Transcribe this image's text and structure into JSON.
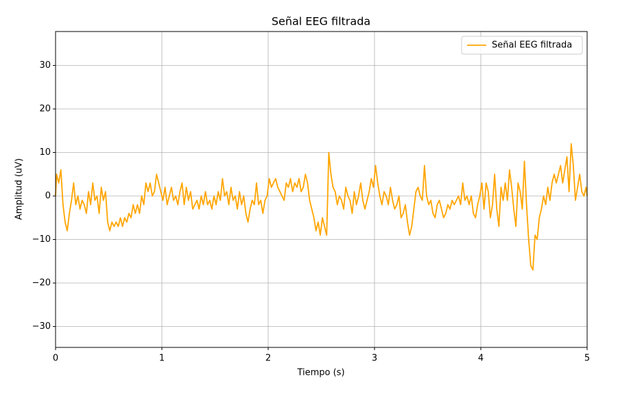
{
  "chart_data": {
    "type": "line",
    "title": "Señal EEG filtrada",
    "xlabel": "Tiempo (s)",
    "ylabel": "Amplitud (uV)",
    "x": [
      0,
      0.01,
      0.03,
      0.05,
      0.07,
      0.09,
      0.11,
      0.13,
      0.15,
      0.17,
      0.19,
      0.21,
      0.23,
      0.25,
      0.27,
      0.29,
      0.31,
      0.33,
      0.35,
      0.37,
      0.39,
      0.41,
      0.43,
      0.45,
      0.47,
      0.49,
      0.51,
      0.53,
      0.55,
      0.57,
      0.59,
      0.61,
      0.63,
      0.65,
      0.67,
      0.69,
      0.71,
      0.73,
      0.75,
      0.77,
      0.79,
      0.81,
      0.83,
      0.85,
      0.87,
      0.89,
      0.91,
      0.93,
      0.95,
      0.97,
      0.99,
      1.01,
      1.03,
      1.05,
      1.07,
      1.09,
      1.11,
      1.13,
      1.15,
      1.17,
      1.19,
      1.21,
      1.23,
      1.25,
      1.27,
      1.29,
      1.31,
      1.33,
      1.35,
      1.37,
      1.39,
      1.41,
      1.43,
      1.45,
      1.47,
      1.49,
      1.51,
      1.53,
      1.55,
      1.57,
      1.59,
      1.61,
      1.63,
      1.65,
      1.67,
      1.69,
      1.71,
      1.73,
      1.75,
      1.77,
      1.79,
      1.81,
      1.83,
      1.85,
      1.87,
      1.89,
      1.91,
      1.93,
      1.95,
      1.97,
      1.99,
      2.01,
      2.03,
      2.05,
      2.07,
      2.09,
      2.11,
      2.13,
      2.15,
      2.17,
      2.19,
      2.21,
      2.23,
      2.25,
      2.27,
      2.29,
      2.31,
      2.33,
      2.35,
      2.37,
      2.39,
      2.41,
      2.43,
      2.45,
      2.47,
      2.49,
      2.51,
      2.53,
      2.55,
      2.57,
      2.59,
      2.61,
      2.63,
      2.65,
      2.67,
      2.69,
      2.71,
      2.73,
      2.75,
      2.77,
      2.79,
      2.81,
      2.83,
      2.85,
      2.87,
      2.89,
      2.91,
      2.93,
      2.95,
      2.97,
      2.99,
      3.01,
      3.03,
      3.05,
      3.07,
      3.09,
      3.11,
      3.13,
      3.15,
      3.17,
      3.19,
      3.21,
      3.23,
      3.25,
      3.27,
      3.29,
      3.31,
      3.33,
      3.35,
      3.37,
      3.39,
      3.41,
      3.43,
      3.45,
      3.47,
      3.49,
      3.51,
      3.53,
      3.55,
      3.57,
      3.59,
      3.61,
      3.63,
      3.65,
      3.67,
      3.69,
      3.71,
      3.73,
      3.75,
      3.77,
      3.79,
      3.81,
      3.83,
      3.85,
      3.87,
      3.89,
      3.91,
      3.93,
      3.95,
      3.97,
      3.99,
      4.01,
      4.03,
      4.05,
      4.07,
      4.09,
      4.11,
      4.13,
      4.15,
      4.17,
      4.19,
      4.21,
      4.23,
      4.25,
      4.27,
      4.29,
      4.31,
      4.33,
      4.35,
      4.37,
      4.39,
      4.41,
      4.43,
      4.45,
      4.47,
      4.49,
      4.51,
      4.53,
      4.55,
      4.57,
      4.59,
      4.61,
      4.63,
      4.65,
      4.67,
      4.69,
      4.71,
      4.73,
      4.75,
      4.77,
      4.79,
      4.81,
      4.83,
      4.85,
      4.87,
      4.89,
      4.91,
      4.93,
      4.95,
      4.97,
      4.99,
      5
    ],
    "series": [
      {
        "name": "Señal EEG filtrada",
        "color": "#ffa500",
        "values": [
          0,
          5,
          3,
          6,
          -2,
          -6,
          -8,
          -4,
          -1,
          3,
          -2,
          0,
          -3,
          -1,
          -2,
          -4,
          1,
          -2,
          3,
          -1,
          0,
          -4,
          2,
          -1,
          1,
          -6,
          -8,
          -6,
          -7,
          -6,
          -7,
          -5,
          -7,
          -5,
          -6,
          -4,
          -5,
          -2,
          -4,
          -2,
          -4,
          0,
          -2,
          3,
          1,
          3,
          0,
          1,
          5,
          3,
          1,
          -1,
          2,
          -2,
          0,
          2,
          -1,
          0,
          -2,
          1,
          3,
          -2,
          2,
          -1,
          1,
          -3,
          -2,
          -1,
          -3,
          0,
          -2,
          1,
          -2,
          -1,
          -3,
          0,
          -2,
          1,
          -1,
          4,
          0,
          1,
          -2,
          2,
          -1,
          0,
          -3,
          1,
          -2,
          0,
          -4,
          -6,
          -3,
          -1,
          -2,
          3,
          -2,
          -1,
          -4,
          -1,
          0,
          4,
          2,
          3,
          4,
          2,
          1,
          0,
          -1,
          3,
          2,
          4,
          1,
          3,
          2,
          4,
          1,
          2,
          5,
          3,
          -1,
          -3,
          -5,
          -8,
          -6,
          -9,
          -5,
          -7,
          -9,
          10,
          5,
          2,
          1,
          -2,
          0,
          -1,
          -3,
          2,
          0,
          -1,
          -4,
          1,
          -2,
          0,
          3,
          -1,
          -3,
          -1,
          1,
          4,
          2,
          7,
          3,
          0,
          -2,
          1,
          0,
          -2,
          2,
          -1,
          -3,
          -2,
          0,
          -5,
          -4,
          -2,
          -6,
          -9,
          -7,
          -3,
          1,
          2,
          0,
          -1,
          7,
          0,
          -2,
          -1,
          -4,
          -5,
          -2,
          -1,
          -3,
          -5,
          -4,
          -2,
          -3,
          -1,
          -2,
          -1,
          0,
          -2,
          3,
          -1,
          0,
          -2,
          0,
          -4,
          -5,
          -2,
          0,
          3,
          -3,
          3,
          1,
          -5,
          -2,
          5,
          -3,
          -7,
          2,
          -1,
          3,
          -1,
          6,
          2,
          -3,
          -7,
          3,
          1,
          -3,
          8,
          -2,
          -10,
          -16,
          -17,
          -9,
          -10,
          -5,
          -3,
          0,
          -2,
          2,
          -1,
          3,
          5,
          3,
          5,
          7,
          3,
          6,
          9,
          1,
          12,
          7,
          -1,
          2,
          5,
          1,
          0,
          2,
          0
        ]
      }
    ],
    "xlim": [
      0,
      5
    ],
    "xticks": [
      0,
      1,
      2,
      3,
      4,
      5
    ],
    "ylim": [
      -34.8,
      37.8
    ],
    "yticks": [
      {
        "value": -30,
        "label": "−30"
      },
      {
        "value": -20,
        "label": "−20"
      },
      {
        "value": -10,
        "label": "−10"
      },
      0,
      10,
      20,
      30
    ],
    "grid": true,
    "legend": "upper right"
  }
}
